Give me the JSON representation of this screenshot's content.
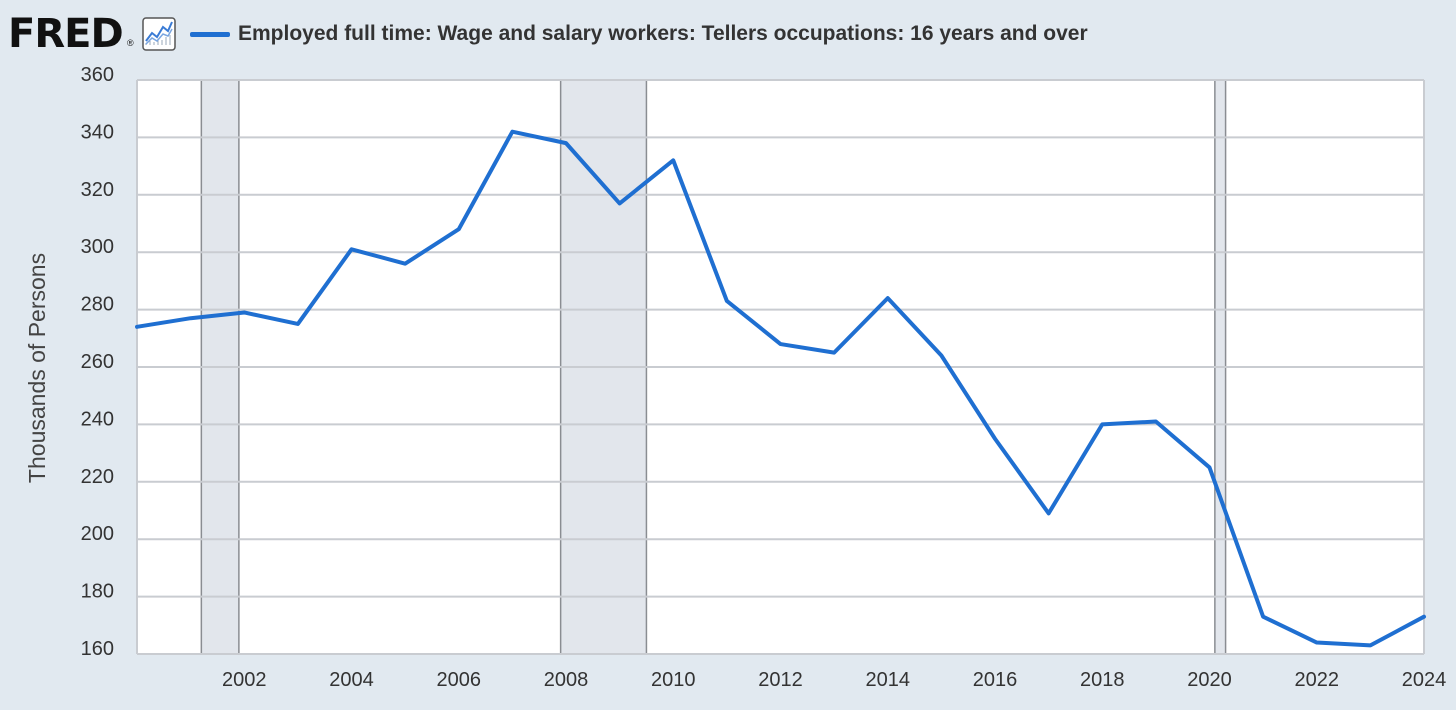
{
  "header": {
    "logo": "FRED",
    "logo_mark": "®",
    "logo_icon": "chart-line-icon",
    "legend_label": "Employed full time: Wage and salary workers: Tellers occupations: 16 years and over"
  },
  "colors": {
    "series": "#1f6fd1",
    "recession": "#e2e6ec",
    "background": "#e1e9f0",
    "plot": "#ffffff",
    "grid": "#c9ccd1"
  },
  "chart_data": {
    "type": "line",
    "title": "",
    "xlabel": "",
    "ylabel": "Thousands of Persons",
    "ylim": [
      160,
      360
    ],
    "xlim": [
      2000,
      2024
    ],
    "yticks": [
      160,
      180,
      200,
      220,
      240,
      260,
      280,
      300,
      320,
      340,
      360
    ],
    "xticks": [
      2002,
      2004,
      2006,
      2008,
      2010,
      2012,
      2014,
      2016,
      2018,
      2020,
      2022,
      2024
    ],
    "grid": true,
    "recessions": [
      [
        2001.2,
        2001.9
      ],
      [
        2007.9,
        2009.5
      ],
      [
        2020.1,
        2020.3
      ]
    ],
    "series": [
      {
        "x": [
          2000,
          2001,
          2002,
          2003,
          2004,
          2005,
          2006,
          2007,
          2008,
          2009,
          2010,
          2011,
          2012,
          2013,
          2014,
          2015,
          2016,
          2017,
          2018,
          2019,
          2020,
          2021,
          2022,
          2023,
          2024
        ],
        "values": [
          274,
          277,
          279,
          275,
          301,
          296,
          308,
          342,
          338,
          317,
          332,
          283,
          268,
          265,
          284,
          264,
          235,
          209,
          240,
          241,
          225,
          173,
          164,
          163,
          173
        ]
      }
    ]
  }
}
